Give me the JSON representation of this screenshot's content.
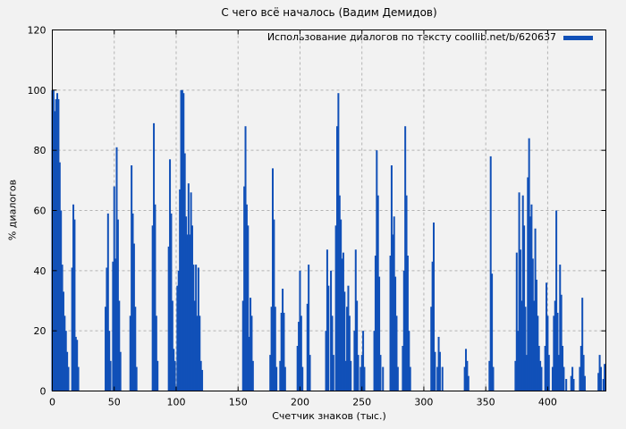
{
  "page": {
    "background": "#f2f2f2"
  },
  "chart_data": {
    "type": "bar",
    "subtype": "impulses",
    "title": "С чего всё началось (Вадим Демидов)",
    "legend": "Использование диалогов по тексту coollib.net/b/620637",
    "xlabel": "Счетчик знаков (тыс.)",
    "ylabel": "% диалогов",
    "xlim": [
      0,
      447
    ],
    "ylim": [
      0,
      120
    ],
    "xticks": [
      0,
      50,
      100,
      150,
      200,
      250,
      300,
      350,
      400
    ],
    "yticks": [
      0,
      20,
      40,
      60,
      80,
      100,
      120
    ],
    "grid": "dashed",
    "legend_position": "top-right-inside",
    "bar_color": "#1150b8",
    "grid_color": "#b4b4b4",
    "border_color": "#000000",
    "points": [
      [
        0,
        100
      ],
      [
        1,
        100
      ],
      [
        2,
        93
      ],
      [
        3,
        97
      ],
      [
        4,
        99
      ],
      [
        5,
        97
      ],
      [
        6,
        76
      ],
      [
        7,
        60
      ],
      [
        8,
        42
      ],
      [
        9,
        33
      ],
      [
        10,
        25
      ],
      [
        11,
        20
      ],
      [
        12,
        13
      ],
      [
        13,
        8
      ],
      [
        16,
        41
      ],
      [
        17,
        62
      ],
      [
        18,
        57
      ],
      [
        19,
        18
      ],
      [
        20,
        17
      ],
      [
        21,
        8
      ],
      [
        43,
        28
      ],
      [
        44,
        41
      ],
      [
        45,
        59
      ],
      [
        46,
        20
      ],
      [
        47,
        10
      ],
      [
        49,
        43
      ],
      [
        50,
        68
      ],
      [
        51,
        44
      ],
      [
        52,
        81
      ],
      [
        53,
        57
      ],
      [
        54,
        30
      ],
      [
        55,
        13
      ],
      [
        63,
        25
      ],
      [
        64,
        75
      ],
      [
        65,
        59
      ],
      [
        66,
        49
      ],
      [
        67,
        28
      ],
      [
        68,
        8
      ],
      [
        81,
        55
      ],
      [
        82,
        89
      ],
      [
        83,
        62
      ],
      [
        84,
        25
      ],
      [
        85,
        10
      ],
      [
        94,
        48
      ],
      [
        95,
        77
      ],
      [
        96,
        59
      ],
      [
        97,
        30
      ],
      [
        98,
        14
      ],
      [
        99,
        10
      ],
      [
        101,
        35
      ],
      [
        102,
        40
      ],
      [
        103,
        67
      ],
      [
        104,
        100
      ],
      [
        105,
        100
      ],
      [
        106,
        99
      ],
      [
        107,
        79
      ],
      [
        108,
        58
      ],
      [
        109,
        52
      ],
      [
        110,
        69
      ],
      [
        111,
        52
      ],
      [
        112,
        66
      ],
      [
        113,
        55
      ],
      [
        114,
        42
      ],
      [
        115,
        30
      ],
      [
        116,
        42
      ],
      [
        117,
        25
      ],
      [
        118,
        41
      ],
      [
        119,
        25
      ],
      [
        120,
        10
      ],
      [
        121,
        7
      ],
      [
        154,
        30
      ],
      [
        155,
        68
      ],
      [
        156,
        88
      ],
      [
        157,
        62
      ],
      [
        158,
        55
      ],
      [
        159,
        18
      ],
      [
        160,
        31
      ],
      [
        161,
        25
      ],
      [
        162,
        10
      ],
      [
        176,
        12
      ],
      [
        177,
        28
      ],
      [
        178,
        74
      ],
      [
        179,
        57
      ],
      [
        180,
        28
      ],
      [
        181,
        8
      ],
      [
        184,
        10
      ],
      [
        185,
        26
      ],
      [
        186,
        34
      ],
      [
        187,
        26
      ],
      [
        188,
        8
      ],
      [
        198,
        15
      ],
      [
        199,
        23
      ],
      [
        200,
        40
      ],
      [
        201,
        25
      ],
      [
        202,
        8
      ],
      [
        206,
        29
      ],
      [
        207,
        42
      ],
      [
        208,
        12
      ],
      [
        221,
        20
      ],
      [
        222,
        47
      ],
      [
        223,
        35
      ],
      [
        225,
        40
      ],
      [
        226,
        25
      ],
      [
        227,
        12
      ],
      [
        229,
        55
      ],
      [
        230,
        88
      ],
      [
        231,
        99
      ],
      [
        232,
        65
      ],
      [
        233,
        57
      ],
      [
        234,
        44
      ],
      [
        235,
        46
      ],
      [
        236,
        33
      ],
      [
        237,
        10
      ],
      [
        238,
        28
      ],
      [
        239,
        35
      ],
      [
        240,
        25
      ],
      [
        241,
        10
      ],
      [
        244,
        20
      ],
      [
        245,
        47
      ],
      [
        246,
        30
      ],
      [
        247,
        12
      ],
      [
        249,
        8
      ],
      [
        250,
        12
      ],
      [
        251,
        20
      ],
      [
        252,
        8
      ],
      [
        260,
        20
      ],
      [
        261,
        45
      ],
      [
        262,
        80
      ],
      [
        263,
        65
      ],
      [
        264,
        38
      ],
      [
        265,
        12
      ],
      [
        267,
        8
      ],
      [
        273,
        45
      ],
      [
        274,
        75
      ],
      [
        275,
        52
      ],
      [
        276,
        58
      ],
      [
        277,
        38
      ],
      [
        278,
        25
      ],
      [
        279,
        8
      ],
      [
        283,
        15
      ],
      [
        284,
        40
      ],
      [
        285,
        88
      ],
      [
        286,
        65
      ],
      [
        287,
        45
      ],
      [
        288,
        20
      ],
      [
        289,
        8
      ],
      [
        306,
        28
      ],
      [
        307,
        43
      ],
      [
        308,
        56
      ],
      [
        309,
        13
      ],
      [
        311,
        8
      ],
      [
        312,
        18
      ],
      [
        313,
        13
      ],
      [
        315,
        8
      ],
      [
        333,
        8
      ],
      [
        334,
        14
      ],
      [
        335,
        10
      ],
      [
        336,
        5
      ],
      [
        353,
        10
      ],
      [
        354,
        78
      ],
      [
        355,
        39
      ],
      [
        356,
        8
      ],
      [
        374,
        10
      ],
      [
        375,
        46
      ],
      [
        376,
        20
      ],
      [
        377,
        66
      ],
      [
        378,
        47
      ],
      [
        379,
        30
      ],
      [
        380,
        65
      ],
      [
        381,
        55
      ],
      [
        382,
        28
      ],
      [
        383,
        12
      ],
      [
        384,
        71
      ],
      [
        385,
        84
      ],
      [
        386,
        58
      ],
      [
        387,
        62
      ],
      [
        388,
        44
      ],
      [
        389,
        30
      ],
      [
        390,
        54
      ],
      [
        391,
        37
      ],
      [
        392,
        25
      ],
      [
        393,
        15
      ],
      [
        394,
        10
      ],
      [
        395,
        8
      ],
      [
        398,
        15
      ],
      [
        399,
        36
      ],
      [
        400,
        25
      ],
      [
        401,
        12
      ],
      [
        404,
        8
      ],
      [
        405,
        25
      ],
      [
        406,
        30
      ],
      [
        407,
        60
      ],
      [
        408,
        26
      ],
      [
        409,
        12
      ],
      [
        410,
        42
      ],
      [
        411,
        32
      ],
      [
        412,
        15
      ],
      [
        413,
        8
      ],
      [
        415,
        4
      ],
      [
        419,
        5
      ],
      [
        420,
        8
      ],
      [
        421,
        4
      ],
      [
        426,
        8
      ],
      [
        427,
        15
      ],
      [
        428,
        31
      ],
      [
        429,
        12
      ],
      [
        430,
        5
      ],
      [
        441,
        6
      ],
      [
        442,
        12
      ],
      [
        443,
        8
      ],
      [
        445,
        4
      ],
      [
        446,
        9
      ]
    ]
  }
}
